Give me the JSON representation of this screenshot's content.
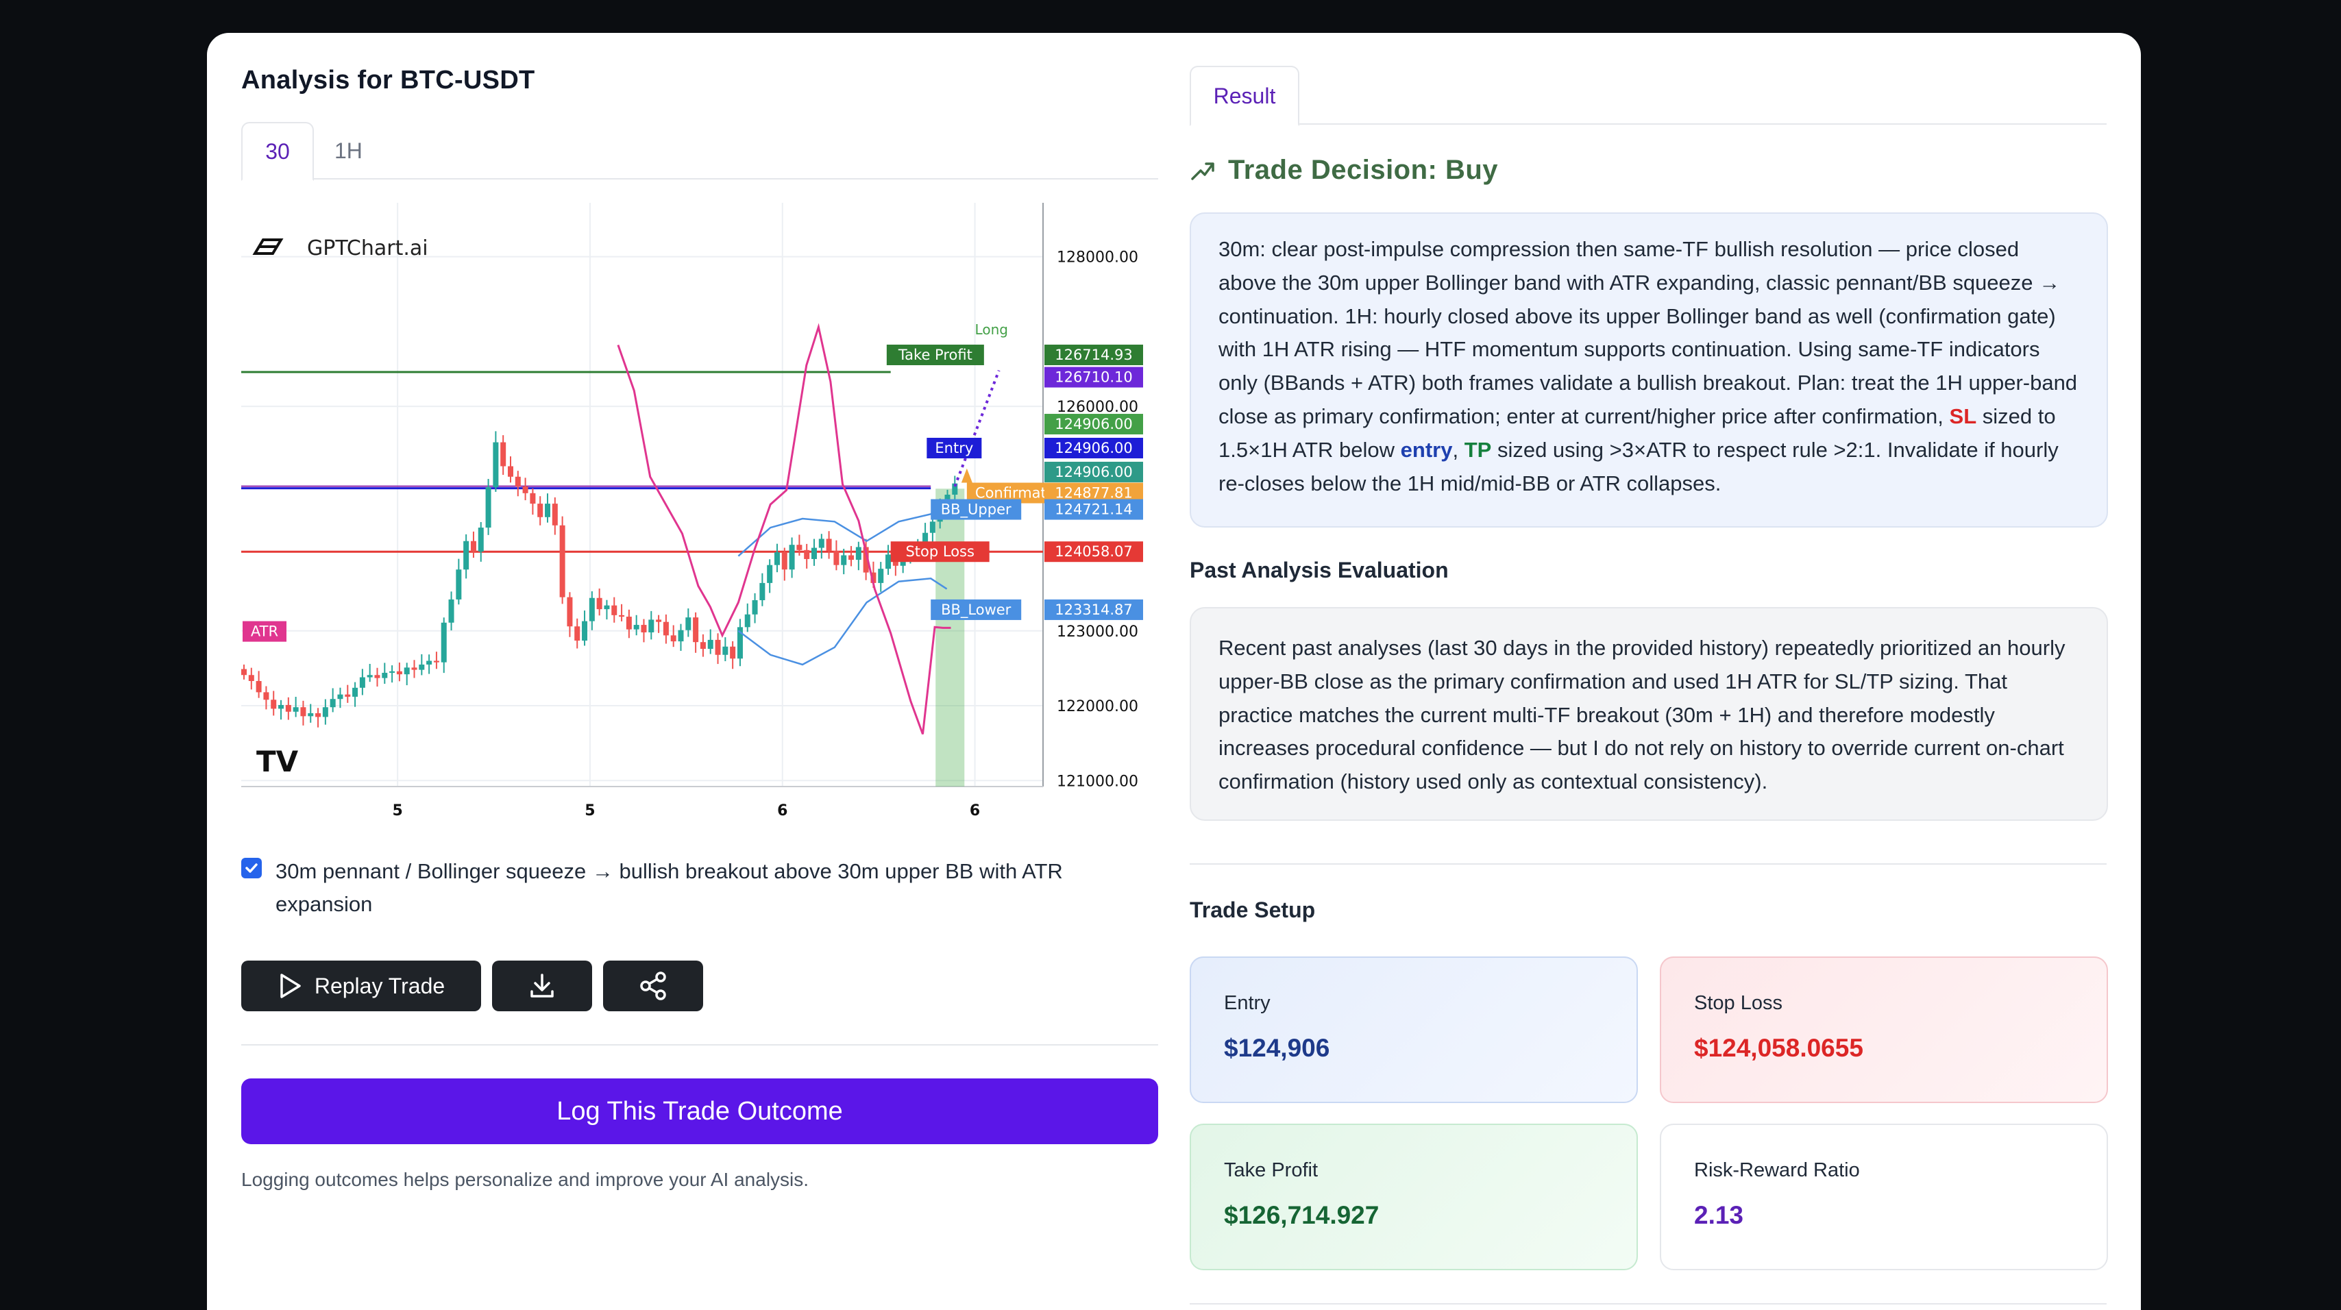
{
  "left": {
    "title": "Analysis for BTC-USDT",
    "tabs": [
      {
        "label": "30",
        "active": true
      },
      {
        "label": "1H",
        "active": false
      }
    ],
    "pattern": {
      "checked": true,
      "text": "30m pennant / Bollinger squeeze → bullish breakout above 30m upper BB with ATR expansion"
    },
    "buttons": {
      "replay": "Replay Trade",
      "download_icon": "download-icon",
      "share_icon": "share-icon",
      "play_icon": "play-icon"
    },
    "log_button": "Log This Trade Outcome",
    "log_note": "Logging outcomes helps personalize and improve your AI analysis."
  },
  "chart": {
    "brand": "GPTChart.ai",
    "tv_logo": "TradingView",
    "atr_tag": "ATR",
    "x_ticks": [
      "5",
      "5",
      "6",
      "6"
    ],
    "y_ticks": [
      {
        "v": 128000,
        "label": "128000.00"
      },
      {
        "v": 126000,
        "label": "126000.00"
      },
      {
        "v": 123000,
        "label": "123000.00"
      },
      {
        "v": 122000,
        "label": "122000.00"
      },
      {
        "v": 121000,
        "label": "121000.00"
      }
    ],
    "long_label": "Long",
    "levels": {
      "take_profit": {
        "name": "Take Profit",
        "value": "126714.93",
        "v": 126714.93,
        "color": "#2e7d32"
      },
      "target": {
        "value": "126710.10",
        "v": 126710.1,
        "color": "#6d28d9"
      },
      "entry": {
        "name": "Entry",
        "value": "124906.00",
        "v": 124906,
        "color": "#1d1dd6"
      },
      "entry_a": {
        "value": "124906.00",
        "color": "#43a047"
      },
      "entry_c": {
        "value": "124906.00",
        "color": "#2e9a88"
      },
      "confirmation": {
        "name": "Confirmation",
        "value": "124877.81",
        "color": "#f2a33a"
      },
      "bb_upper": {
        "name": "BB_Upper",
        "value": "124721.14",
        "color": "#4a90e2"
      },
      "stop_loss": {
        "name": "Stop Loss",
        "value": "124058.07",
        "v": 124058.07,
        "color": "#e53935"
      },
      "bb_lower": {
        "name": "BB_Lower",
        "value": "123314.87",
        "color": "#4a90e2"
      }
    },
    "candles_close": [
      122410,
      122330,
      122180,
      122080,
      121960,
      122010,
      121920,
      121980,
      121860,
      121900,
      121850,
      121980,
      122090,
      122150,
      122120,
      122240,
      122380,
      122410,
      122370,
      122440,
      122460,
      122420,
      122510,
      122480,
      122550,
      122600,
      122580,
      123110,
      123420,
      123820,
      124200,
      124060,
      124380,
      124920,
      125520,
      125200,
      125060,
      124930,
      124840,
      124700,
      124520,
      124700,
      124410,
      123450,
      123060,
      122870,
      123130,
      123440,
      123290,
      123340,
      123210,
      123190,
      123020,
      123080,
      122980,
      123150,
      123120,
      122940,
      122860,
      123010,
      123180,
      122850,
      122760,
      122880,
      122680,
      122790,
      122630,
      123050,
      123220,
      123410,
      123640,
      123880,
      124050,
      123820,
      124150,
      124080,
      123960,
      124110,
      124230,
      124070,
      123880,
      124010,
      123950,
      124120,
      123780,
      123640,
      123830,
      124020,
      123870,
      123960,
      124080,
      124130,
      124310,
      124460,
      124650,
      124820,
      124970
    ],
    "bb_upper": [
      [
        0.62,
        124000
      ],
      [
        0.66,
        124380
      ],
      [
        0.7,
        124500
      ],
      [
        0.74,
        124460
      ],
      [
        0.78,
        124200
      ],
      [
        0.82,
        124460
      ],
      [
        0.86,
        124560
      ],
      [
        0.88,
        124760
      ]
    ],
    "bb_lower": [
      [
        0.62,
        123000
      ],
      [
        0.66,
        122680
      ],
      [
        0.7,
        122550
      ],
      [
        0.74,
        122780
      ],
      [
        0.78,
        123380
      ],
      [
        0.82,
        123660
      ],
      [
        0.86,
        123700
      ],
      [
        0.88,
        123560
      ]
    ],
    "atr_line": [
      [
        0.47,
        126820
      ],
      [
        0.49,
        126210
      ],
      [
        0.51,
        125060
      ],
      [
        0.55,
        124300
      ],
      [
        0.57,
        123600
      ],
      [
        0.585,
        123320
      ],
      [
        0.6,
        122940
      ],
      [
        0.62,
        123380
      ],
      [
        0.64,
        124080
      ],
      [
        0.66,
        124690
      ],
      [
        0.68,
        124880
      ],
      [
        0.705,
        126550
      ],
      [
        0.72,
        127060
      ],
      [
        0.735,
        126330
      ],
      [
        0.75,
        124960
      ],
      [
        0.77,
        124470
      ],
      [
        0.79,
        123560
      ],
      [
        0.81,
        122970
      ],
      [
        0.835,
        122060
      ],
      [
        0.85,
        121620
      ],
      [
        0.865,
        123050
      ],
      [
        0.875,
        123040
      ],
      [
        0.885,
        123040
      ]
    ]
  },
  "right": {
    "tab": "Result",
    "decision_icon": "trending-up-icon",
    "decision": "Trade Decision: Buy",
    "rationale": {
      "p1": "30m: clear post-impulse compression then same-TF bullish resolution — price closed above the 30m upper Bollinger band with ATR expanding, classic pennant/BB squeeze → continuation. 1H: hourly closed above its upper Bollinger band as well (confirmation gate) with 1H ATR rising — HTF momentum supports continuation. Using same-TF indicators only (BBands + ATR) both frames validate a bullish breakout. Plan: treat the 1H upper-band close as primary confirmation; enter at current/higher price after confirmation, ",
      "sl": "SL",
      "p2": " sized to 1.5×1H ATR below ",
      "entry": "entry",
      "p3": ", ",
      "tp": "TP",
      "p4": " sized using >3×ATR to respect rule >2:1. Invalidate if hourly re-closes below the 1H mid/mid-BB or ATR collapses."
    },
    "past_title": "Past Analysis Evaluation",
    "past_text": "Recent past analyses (last 30 days in the provided history) repeatedly prioritized an hourly upper-BB close as the primary confirmation and used 1H ATR for SL/TP sizing. That practice matches the current multi-TF breakout (30m + 1H) and therefore modestly increases procedural confidence — but I do not rely on history to override current on-chart confirmation (history used only as contextual consistency).",
    "setup_title": "Trade Setup",
    "stats": {
      "entry": {
        "label": "Entry",
        "value": "$124,906"
      },
      "stop_loss": {
        "label": "Stop Loss",
        "value": "$124,058.0655"
      },
      "take_profit": {
        "label": "Take Profit",
        "value": "$126,714.927"
      },
      "rr": {
        "label": "Risk-Reward Ratio",
        "value": "2.13"
      }
    }
  }
}
